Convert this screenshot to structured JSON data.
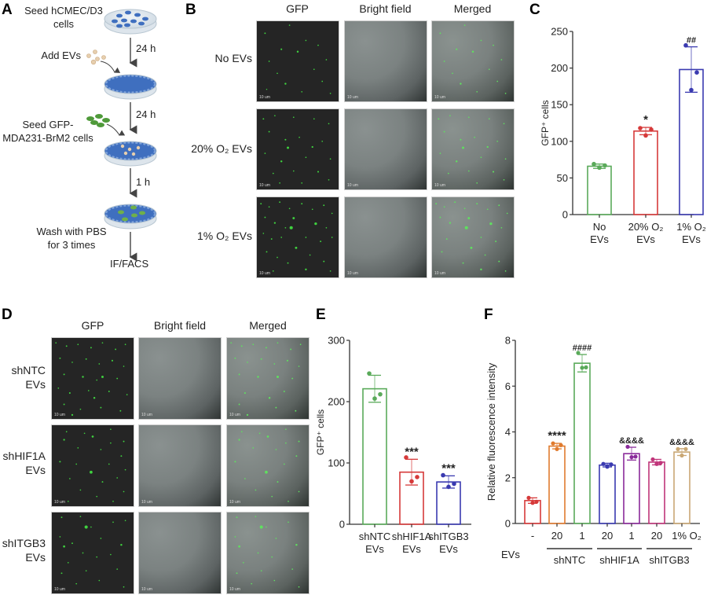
{
  "panels": {
    "A": {
      "label": "A",
      "steps": [
        {
          "text_line1": "Seed hCMEC/D3",
          "text_line2": "cells"
        },
        {
          "text_line1": "Add EVs",
          "text_line2": ""
        },
        {
          "text_line1": "Seed GFP-",
          "text_line2": "MDA231-BrM2 cells"
        },
        {
          "text_line1": "Wash with PBS",
          "text_line2": "for 3 times"
        }
      ],
      "arrow_labels": [
        "24 h",
        "24 h",
        "1 h"
      ],
      "endpoint": "IF/FACS",
      "icons": [
        "petri-dish-icon",
        "vesicle-icon",
        "gfp-cell-icon"
      ]
    },
    "B": {
      "label": "B",
      "columns": [
        "GFP",
        "Bright field",
        "Merged"
      ],
      "rows": [
        "No EVs",
        "20% O₂ EVs",
        "1% O₂ EVs"
      ],
      "scale_bar": "10 um"
    },
    "D": {
      "label": "D",
      "columns": [
        "GFP",
        "Bright field",
        "Merged"
      ],
      "rows": [
        {
          "line1": "shNTC",
          "line2": "EVs"
        },
        {
          "line1": "shHIF1A",
          "line2": "EVs"
        },
        {
          "line1": "shITGB3",
          "line2": "EVs"
        }
      ],
      "scale_bar": "10 um"
    },
    "C": {
      "label": "C"
    },
    "E": {
      "label": "E"
    },
    "F": {
      "label": "F"
    }
  },
  "chart_data": [
    {
      "panel": "C",
      "type": "bar",
      "title": "",
      "xlabel": "",
      "ylabel": "GFP⁺ cells",
      "ylim": [
        0,
        250
      ],
      "yticks": [
        0,
        50,
        100,
        150,
        200,
        250
      ],
      "categories": [
        "No EVs",
        "20% O₂ EVs",
        "1% O₂ EVs"
      ],
      "category_lines": [
        [
          "No",
          "EVs"
        ],
        [
          "20% O₂",
          "EVs"
        ],
        [
          "1% O₂",
          "EVs"
        ]
      ],
      "values": [
        66,
        114,
        198
      ],
      "error": [
        3,
        5,
        31
      ],
      "points": [
        [
          64,
          67,
          69
        ],
        [
          108,
          116,
          118
        ],
        [
          170,
          194,
          231
        ]
      ],
      "colors": [
        "#5aaa5a",
        "#d63a3a",
        "#3a3ab0"
      ],
      "annotations": [
        "",
        "*",
        "##"
      ],
      "grid": false
    },
    {
      "panel": "E",
      "type": "bar",
      "title": "",
      "xlabel": "",
      "ylabel": "GFP⁺ cells",
      "ylim": [
        0,
        300
      ],
      "yticks": [
        0,
        100,
        200,
        300
      ],
      "categories": [
        "shNTC EVs",
        "shHIF1A EVs",
        "shITGB3 EVs"
      ],
      "category_lines": [
        [
          "shNTC",
          "EVs"
        ],
        [
          "shHIF1A",
          "EVs"
        ],
        [
          "shITGB3",
          "EVs"
        ]
      ],
      "values": [
        221,
        85,
        69
      ],
      "error": [
        22,
        21,
        10
      ],
      "points": [
        [
          205,
          212,
          246
        ],
        [
          70,
          77,
          109
        ],
        [
          61,
          66,
          80
        ]
      ],
      "colors": [
        "#5aaa5a",
        "#d63a3a",
        "#3a3ab0"
      ],
      "annotations": [
        "",
        "***",
        "***"
      ],
      "grid": false
    },
    {
      "panel": "F",
      "type": "bar",
      "title": "",
      "ylabel": "Relative fluorescence intensity",
      "xlabel": "EVs",
      "ylim": [
        0,
        8
      ],
      "yticks": [
        0,
        2,
        4,
        6,
        8
      ],
      "categories": [
        "-",
        "20",
        "1",
        "20",
        "1",
        "20",
        "1% O₂"
      ],
      "groups": [
        {
          "name": "shNTC",
          "span": [
            1,
            2
          ]
        },
        {
          "name": "shHIF1A",
          "span": [
            3,
            4
          ]
        },
        {
          "name": "shITGB3",
          "span": [
            5,
            6
          ]
        }
      ],
      "values": [
        1.0,
        3.38,
        7.0,
        2.55,
        3.05,
        2.68,
        3.12
      ],
      "error": [
        0.12,
        0.12,
        0.38,
        0.08,
        0.28,
        0.12,
        0.15
      ],
      "points": [
        [
          0.9,
          0.95,
          1.12
        ],
        [
          3.25,
          3.42,
          3.5
        ],
        [
          6.8,
          6.82,
          7.45
        ],
        [
          2.48,
          2.58,
          2.6
        ],
        [
          2.9,
          2.92,
          3.35
        ],
        [
          2.6,
          2.65,
          2.8
        ],
        [
          2.97,
          3.25,
          3.25
        ]
      ],
      "colors": [
        "#d63a3a",
        "#e07b2e",
        "#5aaa5a",
        "#3a3ab0",
        "#8a2a9a",
        "#c0357a",
        "#c9a774"
      ],
      "annotations": [
        "",
        "****",
        "####",
        "",
        "&&&&",
        "",
        "&&&&"
      ],
      "grid": false
    }
  ]
}
